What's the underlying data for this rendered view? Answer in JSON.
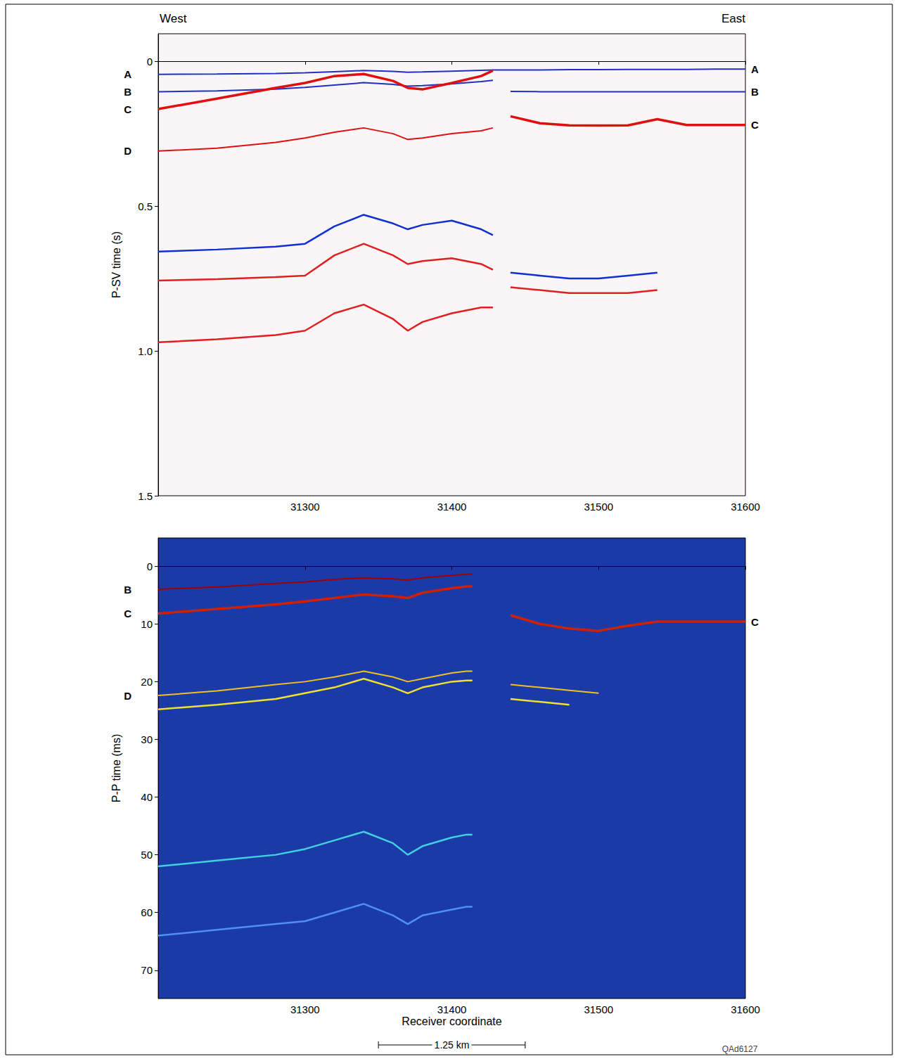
{
  "chart_data": [
    {
      "type": "line",
      "ylabel": "P-SV time (s)",
      "direction_labels": [
        "West",
        "East"
      ],
      "grid": false,
      "xlim": [
        31200,
        31600
      ],
      "xticks": [
        31300,
        31400,
        31500,
        31600
      ],
      "ylim": [
        -0.095,
        1.5
      ],
      "yticks": [
        0,
        0.5,
        {
          "value": 1,
          "label": "1.0"
        },
        1.5
      ],
      "x": [
        31200,
        31240,
        31280,
        31300,
        31320,
        31340,
        31360,
        31370,
        31380,
        31400,
        31420,
        31428,
        31432,
        31440,
        31460,
        31480,
        31500,
        31520,
        31540,
        31560,
        31580,
        31600
      ],
      "series": [
        {
          "name": "A",
          "color": "#2030c0",
          "values": [
            0.045,
            0.044,
            0.042,
            0.04,
            0.036,
            0.032,
            0.035,
            0.038,
            0.037,
            0.034,
            0.031,
            0.03,
            0.03,
            0.03,
            0.03,
            0.029,
            0.029,
            0.028,
            0.028,
            0.028,
            0.027,
            0.027
          ]
        },
        {
          "name": "B",
          "color": "#2030c0",
          "values": [
            0.105,
            0.102,
            0.096,
            0.09,
            0.082,
            0.074,
            0.08,
            0.086,
            0.084,
            0.078,
            0.07,
            0.066,
            null,
            0.104,
            0.105,
            0.105,
            0.105,
            0.105,
            0.105,
            0.105,
            0.105,
            0.105
          ]
        },
        {
          "name": "C",
          "color": "#e01010",
          "values": [
            0.165,
            0.129,
            0.092,
            0.075,
            0.051,
            0.044,
            0.068,
            0.092,
            0.097,
            0.075,
            0.051,
            0.032,
            null,
            0.19,
            0.214,
            0.221,
            0.222,
            0.221,
            0.2,
            0.22,
            0.22,
            0.22
          ]
        },
        {
          "name": "D",
          "color": "#e01010",
          "values": [
            0.31,
            0.3,
            0.28,
            0.265,
            0.245,
            0.23,
            0.25,
            0.27,
            0.265,
            0.25,
            0.24,
            0.23,
            null,
            null,
            null,
            null,
            null,
            null,
            null,
            null,
            null,
            null
          ]
        },
        {
          "color": "#1030d0",
          "values": [
            0.657,
            0.65,
            0.64,
            0.63,
            0.57,
            0.53,
            0.56,
            0.58,
            0.565,
            0.55,
            0.58,
            0.6,
            null,
            0.73,
            0.74,
            0.75,
            0.75,
            0.74,
            0.73,
            null,
            null,
            null
          ]
        },
        {
          "color": "#e02020",
          "values": [
            0.757,
            0.752,
            0.745,
            0.74,
            0.67,
            0.63,
            0.67,
            0.7,
            0.69,
            0.68,
            0.7,
            0.72,
            null,
            0.78,
            0.79,
            0.8,
            0.8,
            0.8,
            0.79,
            null,
            null,
            null
          ]
        },
        {
          "color": "#e02020",
          "values": [
            0.97,
            0.96,
            0.945,
            0.93,
            0.87,
            0.84,
            0.89,
            0.93,
            0.9,
            0.87,
            0.85,
            0.85,
            null,
            null,
            null,
            null,
            null,
            null,
            null,
            null,
            null,
            null
          ]
        }
      ]
    },
    {
      "type": "line",
      "ylabel": "P-P time (ms)",
      "xlabel": "Receiver coordinate",
      "scale_bar": {
        "label": "1.25 km",
        "x": [
          31350,
          31450
        ]
      },
      "figure_id": "QAd6127",
      "grid": false,
      "xlim": [
        31200,
        31600
      ],
      "xticks": [
        31300,
        31400,
        31500,
        31600
      ],
      "ylim": [
        -4.9,
        74.9
      ],
      "yticks": [
        0,
        10,
        20,
        30,
        40,
        50,
        60,
        70
      ],
      "x": [
        31200,
        31240,
        31280,
        31300,
        31320,
        31340,
        31360,
        31370,
        31380,
        31400,
        31410,
        31414,
        31420,
        31440,
        31460,
        31480,
        31500,
        31520,
        31540,
        31560,
        31580,
        31600
      ],
      "series": [
        {
          "name": "B",
          "color": "#a00000",
          "values": [
            4.0,
            3.6,
            3.0,
            2.7,
            2.3,
            2.0,
            2.2,
            2.4,
            2.0,
            1.6,
            1.4,
            1.3,
            null,
            null,
            null,
            null,
            null,
            null,
            null,
            null,
            null,
            null
          ]
        },
        {
          "name": "C",
          "color": "#d02000",
          "values": [
            8.2,
            7.4,
            6.6,
            6.1,
            5.5,
            4.9,
            5.2,
            5.5,
            4.6,
            3.8,
            3.5,
            3.5,
            null,
            8.5,
            10.0,
            10.8,
            11.2,
            10.3,
            9.6,
            9.6,
            9.6,
            9.6
          ]
        },
        {
          "name": "D",
          "color": "#f0c020",
          "values": [
            22.4,
            21.6,
            20.5,
            20.0,
            19.2,
            18.2,
            19.2,
            20.0,
            19.5,
            18.5,
            18.2,
            18.2,
            null,
            20.5,
            21.0,
            21.5,
            22.0,
            null,
            null,
            null,
            null,
            null
          ]
        },
        {
          "color": "#f0e030",
          "values": [
            24.8,
            24.0,
            23.0,
            22.0,
            21.0,
            19.5,
            21.0,
            22.0,
            21.0,
            20.0,
            19.8,
            19.8,
            null,
            23.0,
            23.5,
            24.0,
            null,
            null,
            null,
            null,
            null,
            null
          ]
        },
        {
          "color": "#40d0e0",
          "values": [
            52.0,
            51.0,
            50.0,
            49.0,
            47.5,
            46.0,
            48.0,
            50.0,
            48.5,
            47.0,
            46.5,
            46.5,
            null,
            null,
            null,
            null,
            null,
            null,
            null,
            null,
            null,
            null
          ]
        },
        {
          "color": "#5090f0",
          "values": [
            64.0,
            63.0,
            62.0,
            61.5,
            60.0,
            58.5,
            60.5,
            62.0,
            60.5,
            59.5,
            59.0,
            59.0,
            null,
            null,
            null,
            null,
            null,
            null,
            null,
            null,
            null,
            null
          ]
        }
      ]
    }
  ]
}
